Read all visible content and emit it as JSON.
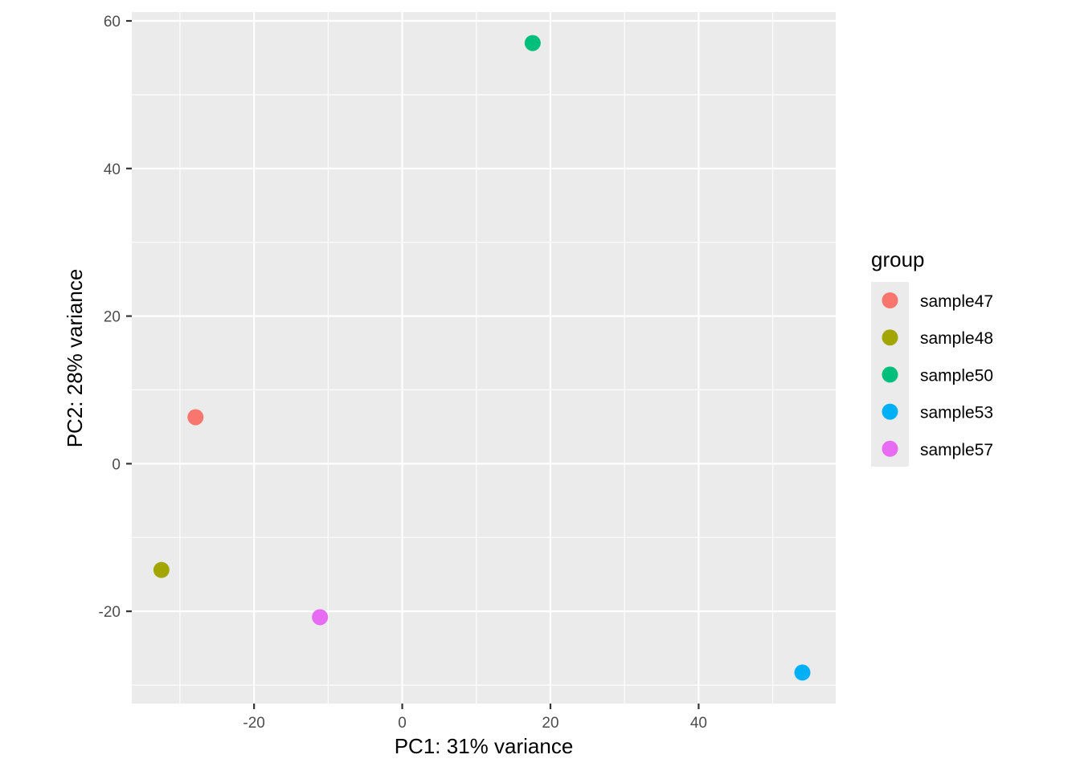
{
  "chart_data": {
    "type": "scatter",
    "xlabel": "PC1: 31% variance",
    "ylabel": "PC2: 28% variance",
    "xlim": [
      -36.5,
      58.5
    ],
    "ylim": [
      -32.5,
      61.2
    ],
    "x_ticks": [
      -20,
      0,
      20,
      40
    ],
    "y_ticks": [
      -20,
      0,
      20,
      40,
      60
    ],
    "grid": true,
    "legend": {
      "title": "group",
      "placement": "right"
    },
    "series": [
      {
        "name": "sample47",
        "color": "#F8766D",
        "x": [
          -27.9
        ],
        "y": [
          6.3
        ]
      },
      {
        "name": "sample48",
        "color": "#A3A500",
        "x": [
          -32.5
        ],
        "y": [
          -14.4
        ]
      },
      {
        "name": "sample50",
        "color": "#00BF7D",
        "x": [
          17.6
        ],
        "y": [
          57.0
        ]
      },
      {
        "name": "sample53",
        "color": "#00B0F6",
        "x": [
          54.0
        ],
        "y": [
          -28.3
        ]
      },
      {
        "name": "sample57",
        "color": "#E76BF3",
        "x": [
          -11.1
        ],
        "y": [
          -20.8
        ]
      }
    ]
  }
}
